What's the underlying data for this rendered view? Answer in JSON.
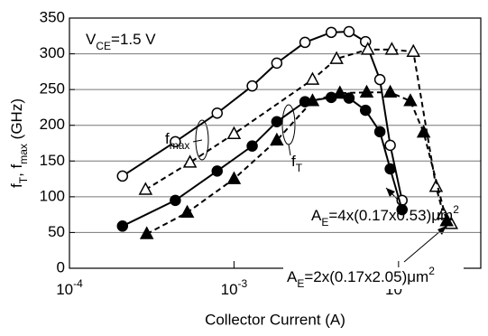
{
  "chart_data": {
    "type": "line",
    "xlabel": "Collector Current (A)",
    "ylabel": [
      {
        "t": "f"
      },
      {
        "t": "T",
        "s": "sub"
      },
      {
        "t": ", f"
      },
      {
        "t": "max",
        "s": "sub"
      },
      {
        "t": " (GHz)"
      }
    ],
    "xscale": "log",
    "xlim": [
      0.0001,
      0.0316
    ],
    "xticks": [
      {
        "value": 0.0001,
        "label": "10",
        "exp": "-4"
      },
      {
        "value": 0.001,
        "label": "10",
        "exp": "-3"
      },
      {
        "value": 0.01,
        "label": "10",
        "exp": "-2"
      }
    ],
    "ylim": [
      0,
      350
    ],
    "yticks": [
      0,
      50,
      100,
      150,
      200,
      250,
      300,
      350
    ],
    "grid": true,
    "annotations": [
      [
        {
          "t": "V"
        },
        {
          "t": "CE",
          "s": "sub"
        },
        {
          "t": "=1.5 V"
        }
      ],
      [
        {
          "t": "f"
        },
        {
          "t": "max",
          "s": "sub"
        }
      ],
      [
        {
          "t": "f"
        },
        {
          "t": "T",
          "s": "sub"
        }
      ],
      [
        {
          "t": "A"
        },
        {
          "t": "E",
          "s": "sub"
        },
        {
          "t": "=4x(0.17x0.53)μm"
        },
        {
          "t": "2",
          "s": "sup"
        }
      ],
      [
        {
          "t": "A"
        },
        {
          "t": "E",
          "s": "sub"
        },
        {
          "t": "=2x(0.17x2.05)μm"
        },
        {
          "t": "2",
          "s": "sup"
        }
      ]
    ],
    "series": [
      {
        "color": "#000000",
        "marker": "circle",
        "filled": false,
        "dashed": false,
        "x": [
          0.00021,
          0.00044,
          0.00079,
          0.00129,
          0.00182,
          0.0027,
          0.0039,
          0.005,
          0.0063,
          0.0077,
          0.0089,
          0.0105
        ],
        "values": [
          129,
          177,
          217,
          255,
          287,
          316,
          330,
          331,
          317,
          264,
          172,
          95
        ]
      },
      {
        "color": "#000000",
        "marker": "circle",
        "filled": true,
        "dashed": false,
        "x": [
          0.00021,
          0.00044,
          0.00079,
          0.00129,
          0.00182,
          0.0027,
          0.0039,
          0.005,
          0.0063,
          0.0077,
          0.0089,
          0.0105
        ],
        "values": [
          59,
          95,
          136,
          171,
          205,
          233,
          239,
          238,
          221,
          191,
          139,
          82
        ]
      },
      {
        "color": "#000000",
        "marker": "triangle",
        "filled": false,
        "dashed": true,
        "x": [
          0.00029,
          0.00054,
          0.001,
          0.003,
          0.0042,
          0.0065,
          0.0091,
          0.0123,
          0.0169,
          0.0187,
          0.0209
        ],
        "values": [
          110,
          148,
          188,
          264,
          293,
          306,
          306,
          303,
          114,
          76,
          62
        ]
      },
      {
        "color": "#000000",
        "marker": "triangle",
        "filled": true,
        "dashed": true,
        "x": [
          0.000295,
          0.00052,
          0.001,
          0.00182,
          0.003,
          0.0044,
          0.0064,
          0.0089,
          0.0118,
          0.0142,
          0.0196
        ],
        "values": [
          48,
          78,
          125,
          179,
          234,
          245,
          246,
          246,
          234,
          190,
          66
        ]
      }
    ]
  }
}
